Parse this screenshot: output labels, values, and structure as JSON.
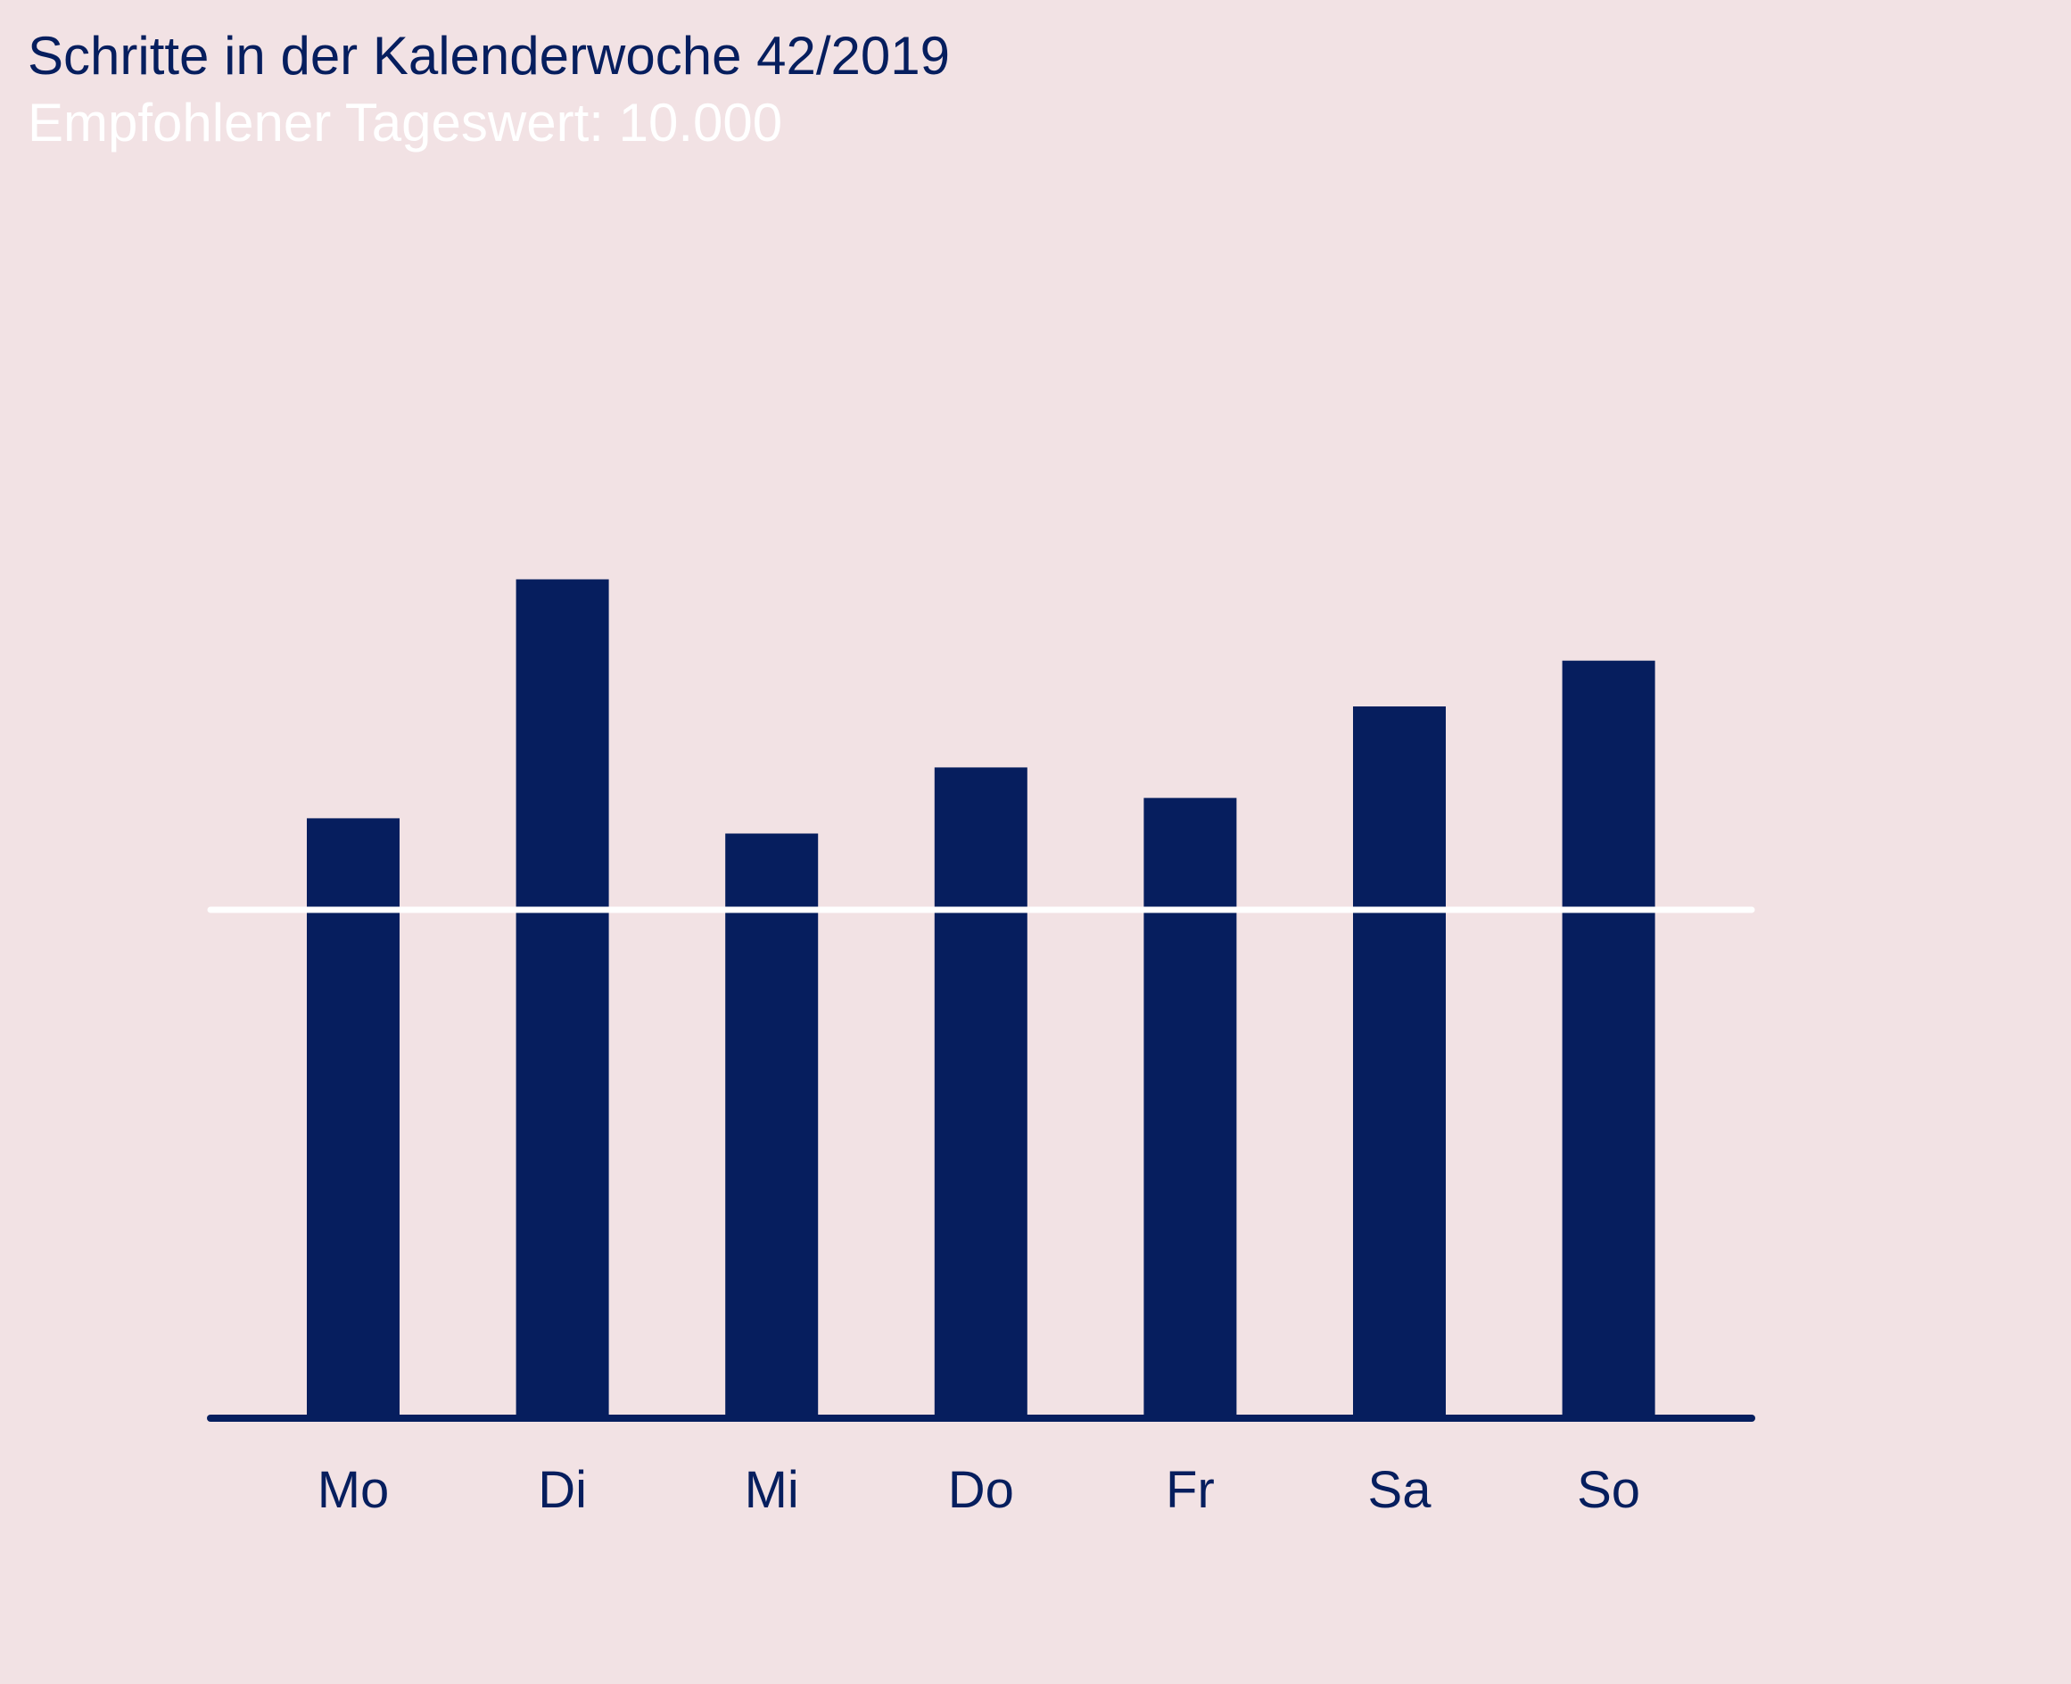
{
  "chart_data": {
    "type": "bar",
    "title": "Schritte in der Kalenderwoche 42/2019",
    "subtitle": "Empfohlener Tageswert: 10.000",
    "categories": [
      "Mo",
      "Di",
      "Mi",
      "Do",
      "Fr",
      "Sa",
      "So"
    ],
    "values": [
      11800,
      16500,
      11500,
      12800,
      12200,
      14000,
      14900
    ],
    "reference_line": 10000,
    "xlabel": "",
    "ylabel": "",
    "ylim": [
      0,
      22000
    ],
    "grid": false,
    "legend": "none"
  },
  "colors": {
    "background": "#f2e2e4",
    "bar": "#061e5e",
    "reference_line": "#ffffff",
    "baseline": "#061e5e",
    "title": "#061e5e",
    "subtitle": "#ffffff",
    "tick_label": "#061e5e"
  }
}
